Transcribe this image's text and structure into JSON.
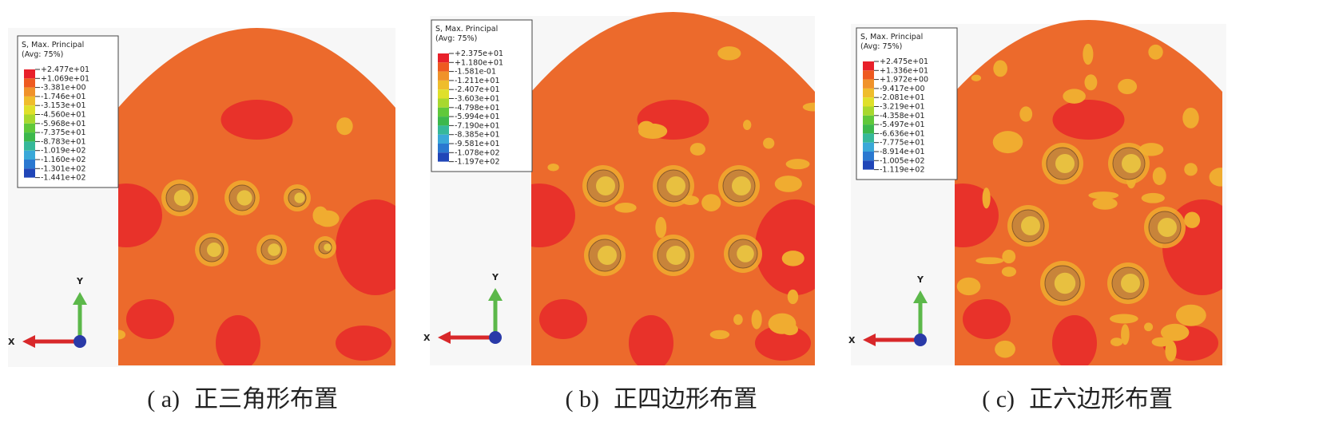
{
  "panels": [
    {
      "legend": {
        "title": "S, Max. Principal",
        "subtitle": "(Avg: 75%)",
        "values": [
          "+2.477e+01",
          "+1.069e+01",
          "-3.381e+00",
          "-1.746e+01",
          "-3.153e+01",
          "-4.560e+01",
          "-5.968e+01",
          "-7.375e+01",
          "-8.783e+01",
          "-1.019e+02",
          "-1.160e+02",
          "-1.301e+02",
          "-1.441e+02"
        ]
      },
      "axes": {
        "x": "X",
        "y": "Y"
      },
      "caption": {
        "label": "( a)",
        "text": "正三角形布置"
      }
    },
    {
      "legend": {
        "title": "S, Max. Principal",
        "subtitle": "(Avg: 75%)",
        "values": [
          "+2.375e+01",
          "+1.180e+01",
          "-1.581e-01",
          "-1.211e+01",
          "-2.407e+01",
          "-3.603e+01",
          "-4.798e+01",
          "-5.994e+01",
          "-7.190e+01",
          "-8.385e+01",
          "-9.581e+01",
          "-1.078e+02",
          "-1.197e+02"
        ]
      },
      "axes": {
        "x": "X",
        "y": "Y"
      },
      "caption": {
        "label": "( b)",
        "text": "正四边形布置"
      }
    },
    {
      "legend": {
        "title": "S, Max. Principal",
        "subtitle": "(Avg: 75%)",
        "values": [
          "+2.475e+01",
          "+1.336e+01",
          "+1.972e+00",
          "-9.417e+00",
          "-2.081e+01",
          "-3.219e+01",
          "-4.358e+01",
          "-5.497e+01",
          "-6.636e+01",
          "-7.775e+01",
          "-8.914e+01",
          "-1.005e+02",
          "-1.119e+02"
        ]
      },
      "axes": {
        "x": "X",
        "y": "Y"
      },
      "caption": {
        "label": "( c)",
        "text": "正六边形布置"
      }
    }
  ]
}
